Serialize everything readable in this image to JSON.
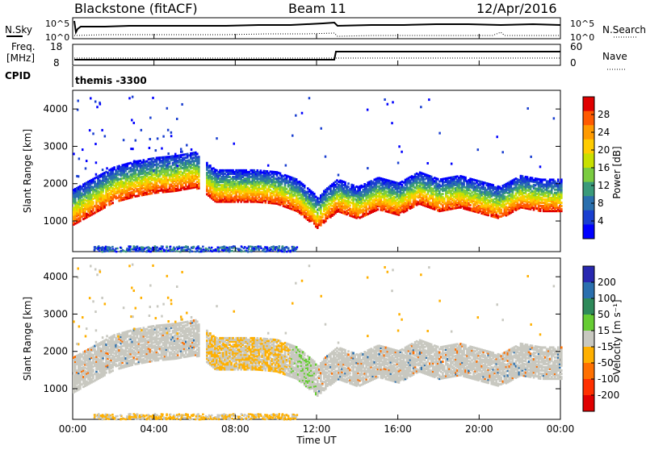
{
  "header": {
    "station": "Blackstone (fitACF)",
    "beam": "Beam 11",
    "date": "12/Apr/2016"
  },
  "top_panels": {
    "nsky_label": "N.Sky",
    "nsearch_label": "N.Search",
    "noise_ticks": [
      "10^5",
      "10^0"
    ],
    "freq_label_line1": "Freq.",
    "freq_label_line2": "[MHz]",
    "freq_ticks": [
      "18",
      "8"
    ],
    "nave_label": "Nave",
    "nave_ticks": [
      "60",
      "0"
    ],
    "cpid_label": "CPID",
    "cpid_value": "themis -3300"
  },
  "power_colorbar": {
    "label": "Power [dB]",
    "ticks": [
      "28",
      "24",
      "20",
      "16",
      "12",
      "8",
      "4"
    ],
    "colors": [
      "#e00000",
      "#ff5a00",
      "#ff9a00",
      "#ffcc00",
      "#c8e000",
      "#7acc40",
      "#3a9a7a",
      "#2a6fae",
      "#1a3fd0",
      "#0000ff"
    ]
  },
  "velocity_colorbar": {
    "label": "Velocity [m s⁻¹]",
    "ticks": [
      "200",
      "100",
      "50",
      "15",
      "-15",
      "-50",
      "-100",
      "-200"
    ],
    "colors": [
      "#2828b0",
      "#2a6fae",
      "#2e8a5a",
      "#66cc33",
      "#c8c8c0",
      "#ffb000",
      "#ff7000",
      "#ff3000",
      "#e00000"
    ]
  },
  "chart_data": [
    {
      "type": "heatmap",
      "title": "Power",
      "ylabel": "Slant Range [km]",
      "xlabel": "Time UT",
      "x_ticks": [
        "00:00",
        "04:00",
        "08:00",
        "12:00",
        "16:00",
        "20:00",
        "00:00"
      ],
      "y_ticks": [
        "4000",
        "3000",
        "2000",
        "1000"
      ],
      "ylim": [
        180,
        4500
      ],
      "xlim_hours": [
        0,
        24
      ],
      "scatter_band_center_km": [
        [
          0,
          1200
        ],
        [
          1,
          1500
        ],
        [
          2,
          1800
        ],
        [
          3,
          1950
        ],
        [
          4,
          2050
        ],
        [
          5,
          2100
        ],
        [
          6,
          2200
        ],
        [
          7,
          1750
        ],
        [
          8,
          1750
        ],
        [
          9,
          1750
        ],
        [
          10,
          1700
        ],
        [
          11,
          1500
        ],
        [
          12,
          1050
        ],
        [
          13,
          1500
        ],
        [
          14,
          1300
        ],
        [
          15,
          1550
        ],
        [
          16,
          1400
        ],
        [
          17,
          1700
        ],
        [
          18,
          1500
        ],
        [
          19,
          1600
        ],
        [
          20,
          1450
        ],
        [
          21,
          1300
        ],
        [
          22,
          1600
        ],
        [
          23,
          1500
        ],
        [
          24,
          1500
        ]
      ]
    },
    {
      "type": "heatmap",
      "title": "Velocity",
      "ylabel": "Slant Range [km]",
      "xlabel": "Time UT",
      "x_ticks": [
        "00:00",
        "04:00",
        "08:00",
        "12:00",
        "16:00",
        "20:00",
        "00:00"
      ],
      "y_ticks": [
        "4000",
        "3000",
        "2000",
        "1000"
      ],
      "ylim": [
        180,
        4500
      ],
      "xlim_hours": [
        0,
        24
      ]
    }
  ],
  "xaxis": {
    "ticks": [
      "00:00",
      "04:00",
      "08:00",
      "12:00",
      "16:00",
      "20:00",
      "00:00"
    ],
    "label": "Time UT"
  }
}
